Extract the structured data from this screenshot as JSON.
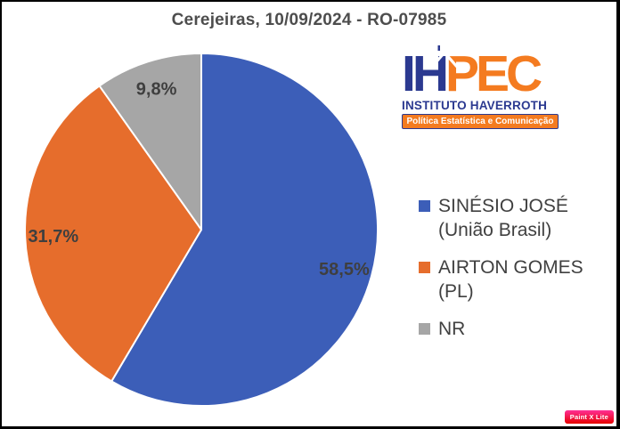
{
  "title": "Cerejeiras, 10/09/2024 - RO-07985",
  "chart_data": {
    "type": "pie",
    "title": "Cerejeiras, 10/09/2024 - RO-07985",
    "categories": [
      "SINÉSIO JOSÉ (União Brasil)",
      "AIRTON GOMES (PL)",
      "NR"
    ],
    "values": [
      58.5,
      31.7,
      9.8
    ],
    "value_labels": [
      "58,5%",
      "31,7%",
      "9,8%"
    ],
    "colors": [
      "#3C5EB8",
      "#E66D2C",
      "#A6A6A6"
    ],
    "start_angle": 0,
    "direction": "clockwise",
    "legend_position": "right",
    "data_label_color": "#3F3F3F",
    "slice_border_color": "#FFFFFF"
  },
  "legend": {
    "items": [
      {
        "name": "SINÉSIO JOSÉ",
        "party": "(União Brasil)",
        "color": "#3C5EB8"
      },
      {
        "name": "AIRTON GOMES",
        "party": "(PL)",
        "color": "#E66D2C"
      },
      {
        "name": "NR",
        "party": "",
        "color": "#A6A6A6"
      }
    ]
  },
  "logo": {
    "acronym_left": "IH",
    "acronym_right": "PEC",
    "institute": "INSTITUTO HAVERROTH",
    "tagline": "Política Estatística e Comunicação",
    "navy": "#2B3990",
    "orange": "#F47B20"
  },
  "watermark": "Paint X Lite"
}
